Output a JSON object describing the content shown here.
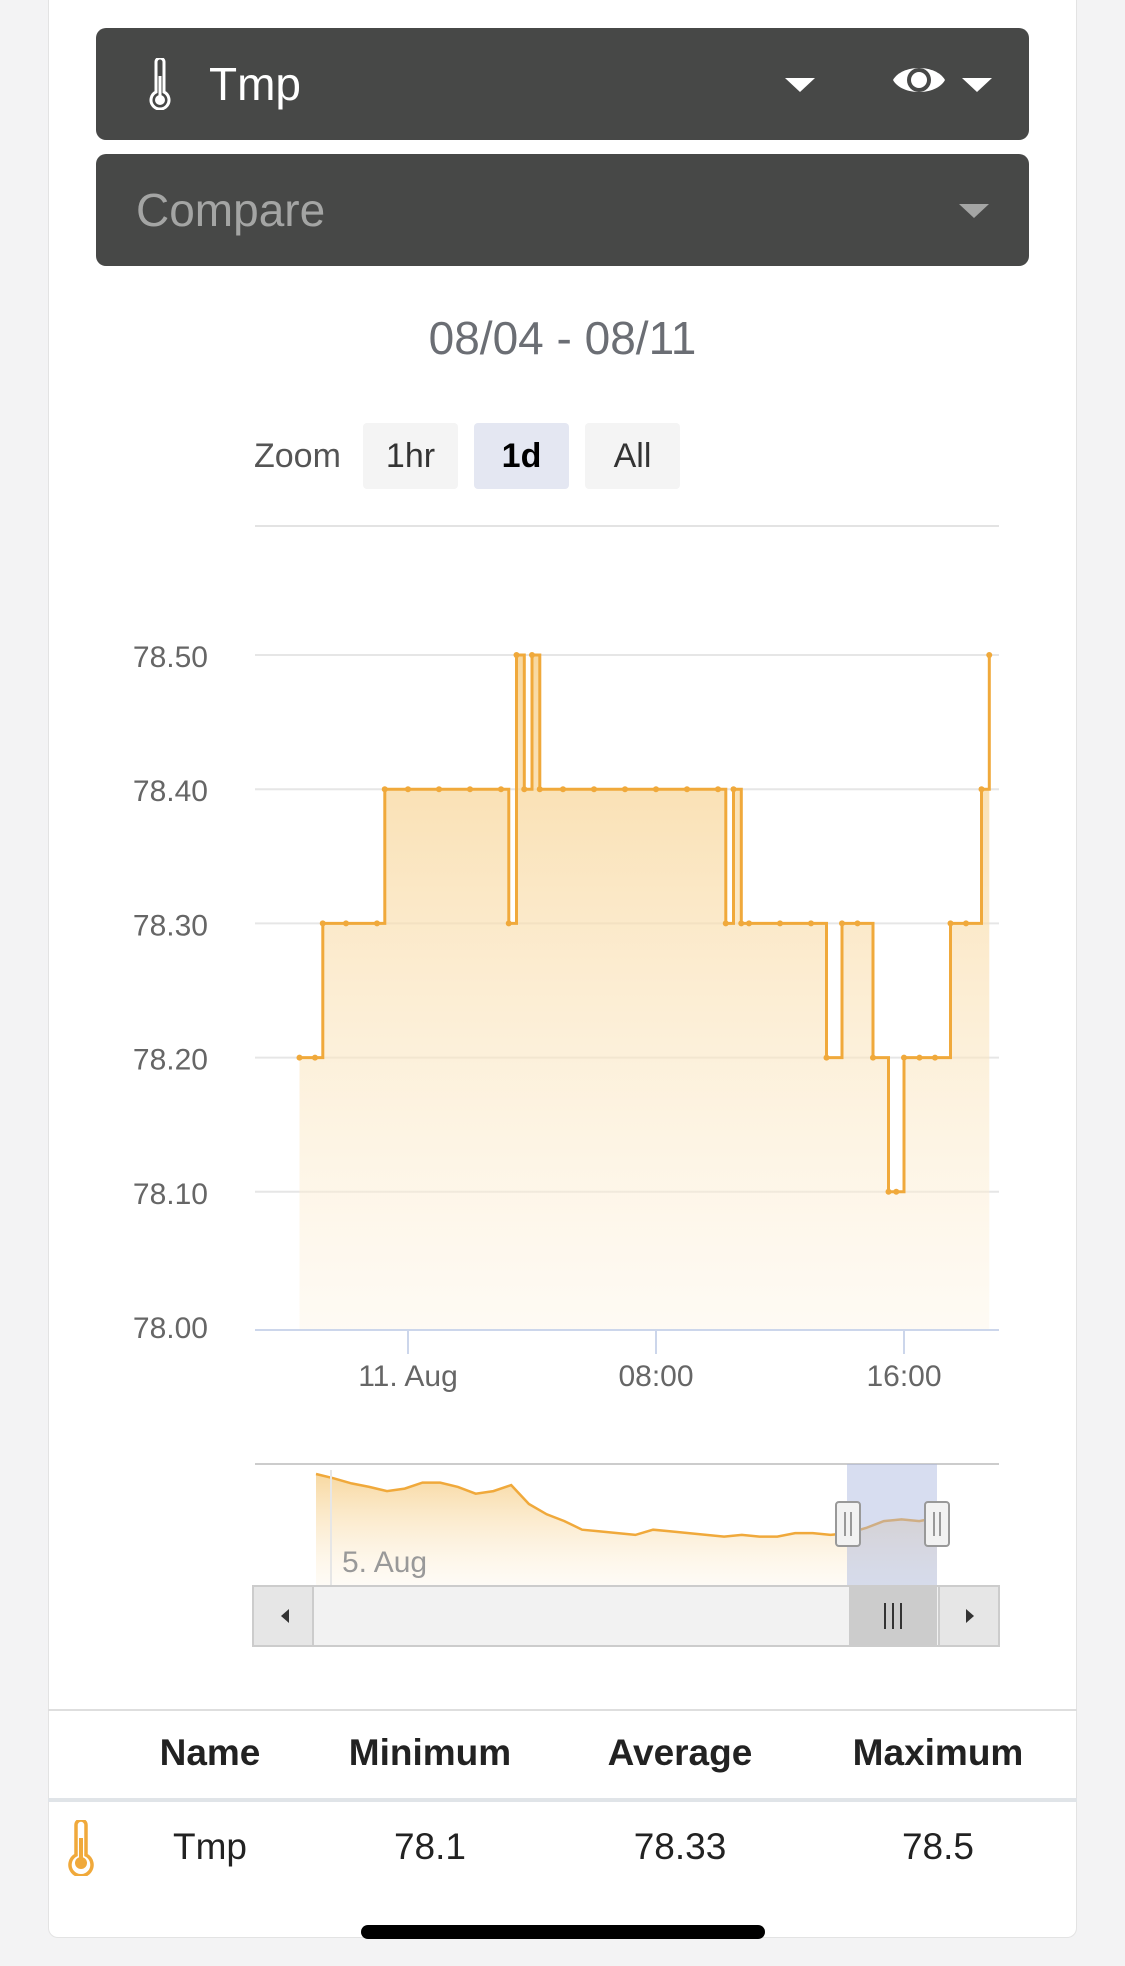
{
  "sensor_select": {
    "icon": "thermometer-icon",
    "label": "Tmp"
  },
  "view_toggle": {
    "icon": "eye-icon"
  },
  "compare_select": {
    "placeholder": "Compare"
  },
  "date_range": "08/04 - 08/11",
  "zoom": {
    "label": "Zoom",
    "options": [
      "1hr",
      "1d",
      "All"
    ],
    "active": "1d"
  },
  "chart_data": {
    "type": "area",
    "title": "",
    "xlabel": "",
    "ylabel": "",
    "ylim": [
      78.0,
      78.55
    ],
    "y_ticks": [
      "78.50",
      "78.40",
      "78.30",
      "78.20",
      "78.10",
      "78.00"
    ],
    "x_ticks": [
      "11. Aug",
      "08:00",
      "16:00"
    ],
    "series": [
      {
        "name": "Tmp",
        "color": "#f0a93b",
        "x": [
          "10 Aug 20:30",
          "10 Aug 21:00",
          "10 Aug 21:15",
          "10 Aug 22:00",
          "10 Aug 23:00",
          "10 Aug 23:15",
          "11 Aug 00:00",
          "11 Aug 01:00",
          "11 Aug 02:00",
          "11 Aug 03:00",
          "11 Aug 03:15",
          "11 Aug 03:30",
          "11 Aug 03:45",
          "11 Aug 04:00",
          "11 Aug 04:15",
          "11 Aug 05:00",
          "11 Aug 06:00",
          "11 Aug 07:00",
          "11 Aug 08:00",
          "11 Aug 09:00",
          "11 Aug 10:00",
          "11 Aug 10:15",
          "11 Aug 10:30",
          "11 Aug 10:45",
          "11 Aug 11:00",
          "11 Aug 12:00",
          "11 Aug 13:00",
          "11 Aug 13:30",
          "11 Aug 14:00",
          "11 Aug 14:30",
          "11 Aug 15:00",
          "11 Aug 15:30",
          "11 Aug 15:45",
          "11 Aug 16:00",
          "11 Aug 16:30",
          "11 Aug 17:00",
          "11 Aug 17:30",
          "11 Aug 18:00",
          "11 Aug 18:30",
          "11 Aug 18:45"
        ],
        "values": [
          78.2,
          78.2,
          78.3,
          78.3,
          78.3,
          78.4,
          78.4,
          78.4,
          78.4,
          78.4,
          78.3,
          78.5,
          78.4,
          78.5,
          78.4,
          78.4,
          78.4,
          78.4,
          78.4,
          78.4,
          78.4,
          78.3,
          78.4,
          78.3,
          78.3,
          78.3,
          78.3,
          78.2,
          78.3,
          78.3,
          78.2,
          78.1,
          78.1,
          78.2,
          78.2,
          78.2,
          78.3,
          78.3,
          78.4,
          78.5
        ]
      }
    ],
    "navigator": {
      "label": "5. Aug",
      "values": [
        78.55,
        78.5,
        78.44,
        78.4,
        78.35,
        78.38,
        78.45,
        78.45,
        78.4,
        78.32,
        78.35,
        78.42,
        78.2,
        78.08,
        78.0,
        77.9,
        77.88,
        77.86,
        77.84,
        77.9,
        77.88,
        77.86,
        77.84,
        77.82,
        77.84,
        77.82,
        77.82,
        77.86,
        77.86,
        77.84,
        77.86,
        77.92,
        78.0,
        78.02,
        78.0,
        78.04
      ],
      "selected_range": [
        "10 Aug 20:30",
        "11 Aug 18:45"
      ]
    }
  },
  "stats_table": {
    "headers": [
      "Name",
      "Minimum",
      "Average",
      "Maximum"
    ],
    "rows": [
      {
        "icon": "thermometer-icon",
        "name": "Tmp",
        "minimum": "78.1",
        "average": "78.33",
        "maximum": "78.5"
      }
    ]
  }
}
